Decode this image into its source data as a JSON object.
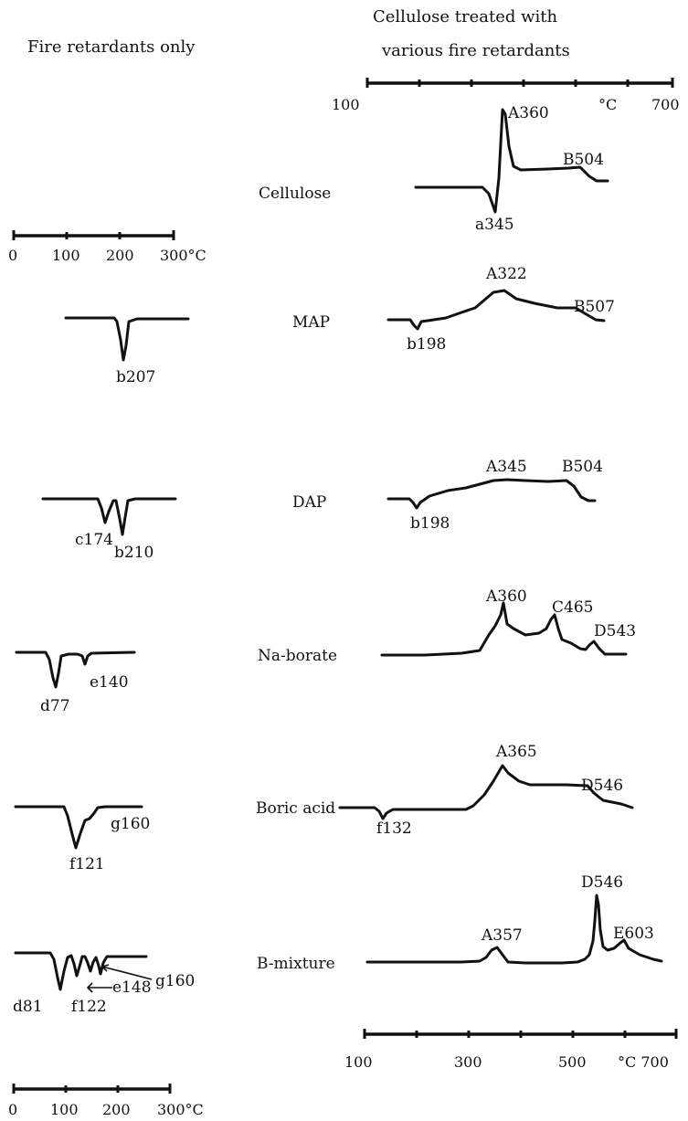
{
  "headers": {
    "left": "Fire retardants only",
    "right_line1": "Cellulose treated with",
    "right_line2": "various fire retardants"
  },
  "chart_data": {
    "type": "line",
    "description_axes": {
      "right_top": {
        "ticks": [
          "100",
          "°C",
          "700"
        ],
        "range": [
          100,
          700
        ]
      },
      "right_bottom": {
        "ticks": [
          "100",
          "300",
          "500",
          "°C 700"
        ],
        "range": [
          100,
          700
        ]
      },
      "left_top": {
        "ticks": [
          "0",
          "100",
          "200",
          "300°C"
        ],
        "range": [
          0,
          300
        ]
      },
      "left_bottom": {
        "ticks": [
          "0",
          "100",
          "200",
          "300°C"
        ],
        "range": [
          0,
          300
        ]
      }
    },
    "samples": [
      {
        "name": "Cellulose",
        "treated_peaks": [
          {
            "label": "a345",
            "temp": 345,
            "kind": "endo"
          },
          {
            "label": "A360",
            "temp": 360,
            "kind": "exo"
          },
          {
            "label": "B504",
            "temp": 504,
            "kind": "exo"
          }
        ],
        "retardant_peaks": []
      },
      {
        "name": "MAP",
        "treated_peaks": [
          {
            "label": "b198",
            "temp": 198,
            "kind": "endo"
          },
          {
            "label": "A322",
            "temp": 322,
            "kind": "exo"
          },
          {
            "label": "B507",
            "temp": 507,
            "kind": "exo"
          }
        ],
        "retardant_peaks": [
          {
            "label": "b207",
            "temp": 207,
            "kind": "endo"
          }
        ]
      },
      {
        "name": "DAP",
        "treated_peaks": [
          {
            "label": "b198",
            "temp": 198,
            "kind": "endo"
          },
          {
            "label": "A345",
            "temp": 345,
            "kind": "exo"
          },
          {
            "label": "B504",
            "temp": 504,
            "kind": "exo"
          }
        ],
        "retardant_peaks": [
          {
            "label": "c174",
            "temp": 174,
            "kind": "endo"
          },
          {
            "label": "b210",
            "temp": 210,
            "kind": "endo"
          }
        ]
      },
      {
        "name": "Na-borate",
        "treated_peaks": [
          {
            "label": "A360",
            "temp": 360,
            "kind": "exo"
          },
          {
            "label": "C465",
            "temp": 465,
            "kind": "exo"
          },
          {
            "label": "D543",
            "temp": 543,
            "kind": "exo"
          }
        ],
        "retardant_peaks": [
          {
            "label": "d77",
            "temp": 77,
            "kind": "endo"
          },
          {
            "label": "e140",
            "temp": 140,
            "kind": "endo"
          }
        ]
      },
      {
        "name": "Boric acid",
        "treated_peaks": [
          {
            "label": "f132",
            "temp": 132,
            "kind": "endo"
          },
          {
            "label": "A365",
            "temp": 365,
            "kind": "exo"
          },
          {
            "label": "D546",
            "temp": 546,
            "kind": "exo"
          }
        ],
        "retardant_peaks": [
          {
            "label": "f121",
            "temp": 121,
            "kind": "endo"
          },
          {
            "label": "g160",
            "temp": 160,
            "kind": "endo"
          }
        ]
      },
      {
        "name": "B-mixture",
        "treated_peaks": [
          {
            "label": "A357",
            "temp": 357,
            "kind": "exo"
          },
          {
            "label": "D546",
            "temp": 546,
            "kind": "exo"
          },
          {
            "label": "E603",
            "temp": 603,
            "kind": "exo"
          }
        ],
        "retardant_peaks": [
          {
            "label": "d81",
            "temp": 81,
            "kind": "endo"
          },
          {
            "label": "f122",
            "temp": 122,
            "kind": "endo"
          },
          {
            "label": "e148",
            "temp": 148,
            "kind": "endo"
          },
          {
            "label": "g160",
            "temp": 160,
            "kind": "endo"
          }
        ]
      }
    ]
  }
}
